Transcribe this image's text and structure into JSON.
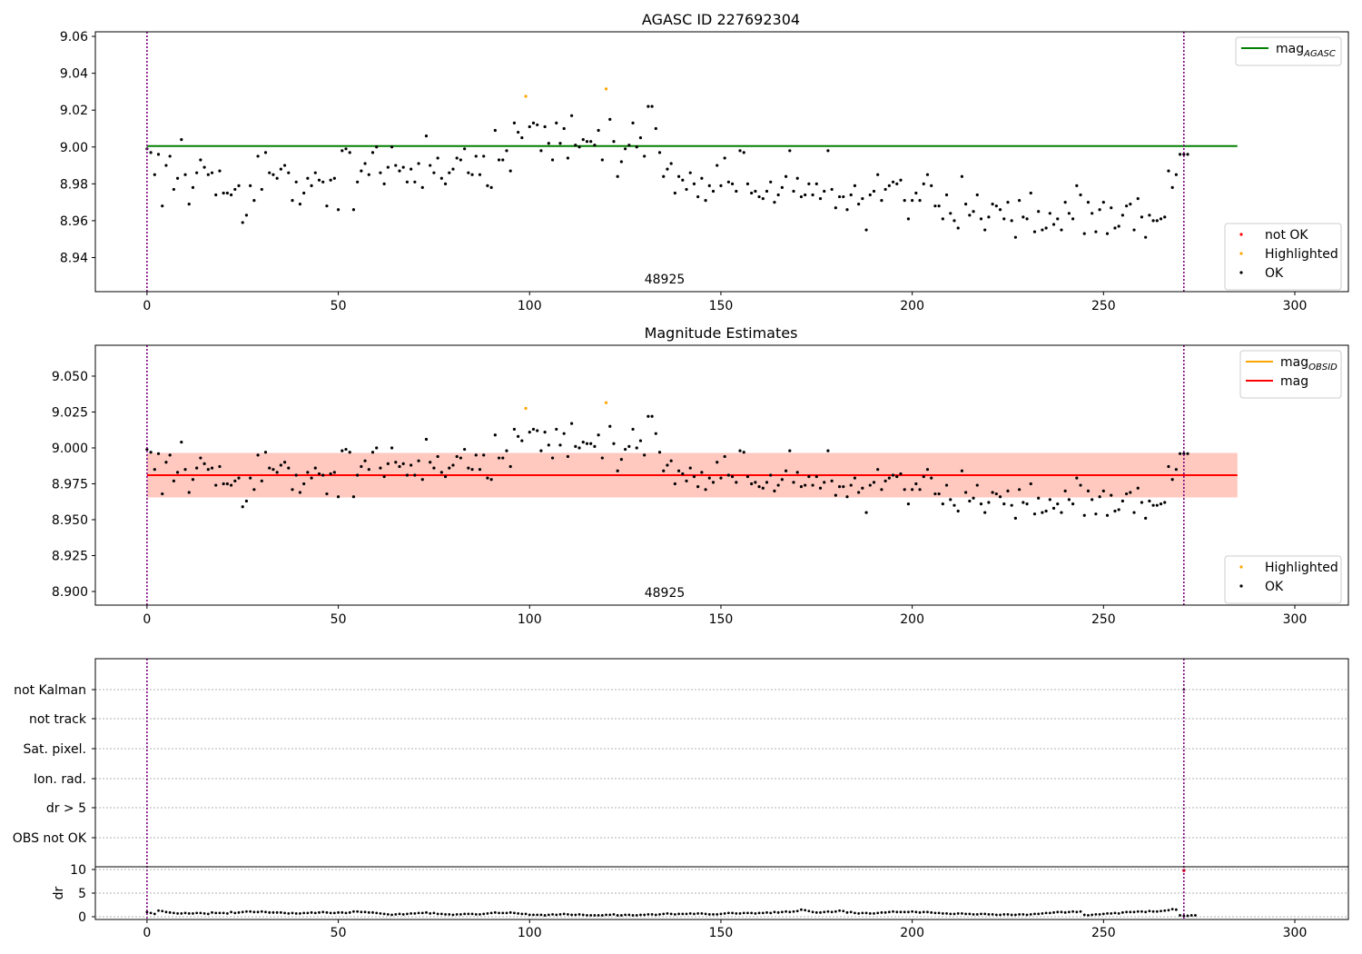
{
  "chart_data": [
    {
      "type": "scatter",
      "title": "AGASC ID 227692304",
      "xlim": [
        -13.5,
        314
      ],
      "ylim": [
        8.9215,
        9.0625
      ],
      "xticks": [
        0,
        50,
        100,
        150,
        200,
        250,
        300
      ],
      "yticks": [
        8.94,
        8.96,
        8.98,
        9.0,
        9.02,
        9.04,
        9.06
      ],
      "ytick_labels": [
        "8.94",
        "8.96",
        "8.98",
        "9.00",
        "9.02",
        "9.04",
        "9.06"
      ],
      "vlines": [
        0,
        271
      ],
      "obsid_label": {
        "text": "48925",
        "x": 135.5
      },
      "reference_line": {
        "name": "mag_AGASC",
        "y": 9.0005,
        "x": [
          0,
          285
        ],
        "color": "#008000"
      },
      "legends": {
        "top": [
          {
            "label": "mag",
            "subscript": "AGASC",
            "color": "#008000",
            "kind": "line"
          }
        ],
        "bottom": [
          {
            "label": "not OK",
            "color": "#ff0000",
            "kind": "marker"
          },
          {
            "label": "Highlighted",
            "color": "#ffa500",
            "kind": "marker"
          },
          {
            "label": "OK",
            "color": "#000000",
            "kind": "marker"
          }
        ]
      }
    },
    {
      "type": "scatter",
      "title": "Magnitude Estimates",
      "xlim": [
        -13.5,
        314
      ],
      "ylim": [
        8.8905,
        9.0715
      ],
      "xticks": [
        0,
        50,
        100,
        150,
        200,
        250,
        300
      ],
      "yticks": [
        8.9,
        8.925,
        8.95,
        8.975,
        9.0,
        9.025,
        9.05
      ],
      "ytick_labels": [
        "8.900",
        "8.925",
        "8.950",
        "8.975",
        "9.000",
        "9.025",
        "9.050"
      ],
      "vlines": [
        0,
        271
      ],
      "obsid_label": {
        "text": "48925",
        "x": 135.5
      },
      "mean_line": {
        "name": "mag",
        "y": 8.981,
        "x": [
          0,
          285
        ],
        "color": "#ff0000"
      },
      "band": {
        "y": [
          8.9655,
          8.9965
        ],
        "x": [
          0,
          285
        ],
        "colors": [
          "#ffc0cb",
          "#ffa07a"
        ]
      },
      "legends": {
        "top": [
          {
            "label": "mag",
            "subscript": "OBSID",
            "color": "#ffa500",
            "kind": "line"
          },
          {
            "label": "mag",
            "subscript": "",
            "color": "#ff0000",
            "kind": "line"
          }
        ],
        "bottom": [
          {
            "label": "Highlighted",
            "color": "#ffa500",
            "kind": "marker"
          },
          {
            "label": "OK",
            "color": "#000000",
            "kind": "marker"
          }
        ]
      }
    },
    {
      "type": "scatter",
      "title": "",
      "xlim": [
        -13.5,
        314
      ],
      "xticks": [
        0,
        50,
        100,
        150,
        200,
        250,
        300
      ],
      "vlines": [
        0,
        271
      ],
      "flag_labels": [
        "not Kalman",
        "not track",
        "Sat. pixel.",
        "Ion. rad.",
        "dr > 5",
        "OBS not OK"
      ],
      "dr_ylabel": "dr",
      "dr_ylim": [
        0,
        10
      ],
      "dr_yticks": [
        0,
        5,
        10
      ],
      "dr_ytick_labels": [
        "0",
        "5",
        "10"
      ],
      "flag_points": [
        {
          "x": 271,
          "flag": "not Kalman"
        },
        {
          "x": 271,
          "dr": 9.8,
          "color": "#ff0000"
        }
      ]
    }
  ],
  "series": {
    "ok_mag": [
      8.999,
      8.997,
      8.985,
      8.996,
      8.968,
      8.99,
      8.995,
      8.977,
      8.983,
      9.004,
      8.985,
      8.969,
      8.978,
      8.986,
      8.993,
      8.989,
      8.985,
      8.986,
      8.974,
      8.987,
      8.975,
      8.975,
      8.974,
      8.977,
      8.979,
      8.959,
      8.963,
      8.979,
      8.971,
      8.995,
      8.977,
      8.997,
      8.986,
      8.985,
      8.983,
      8.988,
      8.99,
      8.986,
      8.971,
      8.981,
      8.969,
      8.975,
      8.983,
      8.979,
      8.986,
      8.982,
      8.981,
      8.968,
      8.982,
      8.983,
      8.966,
      8.998,
      8.999,
      8.997,
      8.966,
      8.981,
      8.987,
      8.991,
      8.985,
      8.997,
      9.0,
      8.986,
      8.98,
      8.989,
      9.0,
      8.99,
      8.987,
      8.989,
      8.981,
      8.988,
      8.981,
      8.991,
      8.978,
      9.006,
      8.99,
      8.986,
      8.994,
      8.983,
      8.98,
      8.986,
      8.988,
      8.994,
      8.993,
      8.999,
      8.986,
      8.985,
      8.995,
      8.985,
      8.995,
      8.979,
      8.978,
      9.009,
      8.993,
      8.993,
      8.998,
      8.987,
      9.013,
      9.008,
      9.005,
      9.013,
      9.011,
      9.013,
      9.012,
      8.998,
      9.011,
      9.002,
      8.993,
      9.013,
      9.002,
      9.01,
      8.994,
      9.017,
      9.001,
      9.0,
      9.004,
      9.003,
      9.003,
      9.001,
      9.009,
      8.993,
      9.011,
      9.015,
      9.003,
      8.984,
      8.992,
      8.999,
      9.001,
      9.013,
      9.0,
      9.005,
      8.995,
      9.022,
      9.022,
      9.01,
      8.997,
      8.984,
      8.988,
      8.991,
      8.975,
      8.984,
      8.982,
      8.977,
      8.986,
      8.98,
      8.973,
      8.983,
      8.971,
      8.979,
      8.976,
      8.99,
      8.979,
      8.994,
      8.981,
      8.98,
      8.976,
      8.998,
      8.997,
      8.98,
      8.975,
      8.976,
      8.973,
      8.972,
      8.976,
      8.981,
      8.97,
      8.974,
      8.978,
      8.984,
      8.998,
      8.976,
      8.983,
      8.973,
      8.974,
      8.98,
      8.974,
      8.98,
      8.972,
      8.976,
      8.998,
      8.977,
      8.967,
      8.973,
      8.973,
      8.966,
      8.974,
      8.979,
      8.969,
      8.972,
      8.955,
      8.974,
      8.976,
      8.985,
      8.971,
      8.977,
      8.979,
      8.981,
      8.98,
      8.982,
      8.971,
      8.961,
      8.971,
      8.975,
      8.971,
      8.98,
      8.985,
      8.979,
      8.968,
      8.968,
      8.961,
      8.974,
      8.964,
      8.96,
      8.956,
      8.984,
      8.969,
      8.963,
      8.965,
      8.974,
      8.961,
      8.955,
      8.962,
      8.969,
      8.968,
      8.966,
      8.961,
      8.97,
      8.96,
      8.951,
      8.971,
      8.962,
      8.961,
      8.975,
      8.954,
      8.965,
      8.955,
      8.956,
      8.964,
      8.958,
      8.961,
      8.955,
      8.97,
      8.964,
      8.961,
      8.979,
      8.974,
      8.953,
      8.97,
      8.964,
      8.954,
      8.966,
      8.97,
      8.953,
      8.967,
      8.956,
      8.957,
      8.963,
      8.968,
      8.969,
      8.955,
      8.972,
      8.962,
      8.951,
      8.963,
      8.96,
      8.96,
      8.961,
      8.962,
      8.987,
      8.978,
      8.985,
      8.996,
      8.996,
      8.996
    ],
    "highlighted": [
      {
        "x": 99,
        "y": 9.0275
      },
      {
        "x": 120,
        "y": 9.0315
      }
    ],
    "dr": [
      1.0,
      0.8,
      0.6,
      1.3,
      1.2,
      1.0,
      0.9,
      0.8,
      0.7,
      0.7,
      0.8,
      0.7,
      0.7,
      0.8,
      0.8,
      0.7,
      0.6,
      0.9,
      0.8,
      0.8,
      0.8,
      0.7,
      1.0,
      0.8,
      0.9,
      1.0,
      1.1,
      1.1,
      1.0,
      1.0,
      1.1,
      1.0,
      0.9,
      0.9,
      0.9,
      0.9,
      0.8,
      0.7,
      0.8,
      0.7,
      0.7,
      0.8,
      0.8,
      0.9,
      0.8,
      0.9,
      1.0,
      0.9,
      0.8,
      0.8,
      0.9,
      0.9,
      0.8,
      0.9,
      1.1,
      1.1,
      1.0,
      1.0,
      0.9,
      0.9,
      0.8,
      0.7,
      0.6,
      0.5,
      0.4,
      0.5,
      0.6,
      0.5,
      0.6,
      0.7,
      0.7,
      0.8,
      0.8,
      0.9,
      0.7,
      0.8,
      0.6,
      0.6,
      0.5,
      0.5,
      0.4,
      0.5,
      0.5,
      0.6,
      0.6,
      0.6,
      0.5,
      0.5,
      0.6,
      0.7,
      0.8,
      0.9,
      0.8,
      0.8,
      0.8,
      0.9,
      0.8,
      0.7,
      0.6,
      0.6,
      0.4,
      0.4,
      0.4,
      0.4,
      0.3,
      0.4,
      0.5,
      0.4,
      0.5,
      0.6,
      0.5,
      0.4,
      0.4,
      0.5,
      0.4,
      0.3,
      0.3,
      0.3,
      0.3,
      0.3,
      0.4,
      0.4,
      0.5,
      0.3,
      0.3,
      0.4,
      0.4,
      0.3,
      0.3,
      0.4,
      0.4,
      0.5,
      0.5,
      0.4,
      0.5,
      0.6,
      0.7,
      0.6,
      0.5,
      0.6,
      0.6,
      0.6,
      0.7,
      0.6,
      0.7,
      0.7,
      0.6,
      0.5,
      0.5,
      0.5,
      0.6,
      0.7,
      0.8,
      0.8,
      0.7,
      0.7,
      0.8,
      0.8,
      0.8,
      0.7,
      0.8,
      0.8,
      0.9,
      0.8,
      1.0,
      0.9,
      1.0,
      1.1,
      1.0,
      1.1,
      1.2,
      1.5,
      1.4,
      1.2,
      1.0,
      0.9,
      0.9,
      1.0,
      1.1,
      1.0,
      1.1,
      1.3,
      1.2,
      0.9,
      1.0,
      0.8,
      0.7,
      0.8,
      0.8,
      0.7,
      0.7,
      0.8,
      0.9,
      0.9,
      1.0,
      1.1,
      1.0,
      1.0,
      1.0,
      1.0,
      1.1,
      1.0,
      0.9,
      1.0,
      1.0,
      0.9,
      0.8,
      0.8,
      0.7,
      0.7,
      0.6,
      0.6,
      0.7,
      0.7,
      0.6,
      0.6,
      0.5,
      0.5,
      0.6,
      0.6,
      0.5,
      0.5,
      0.4,
      0.4,
      0.5,
      0.5,
      0.4,
      0.4,
      0.5,
      0.5,
      0.4,
      0.5,
      0.6,
      0.6,
      0.7,
      0.8,
      0.8,
      0.9,
      1.0,
      1.0,
      0.9,
      1.0,
      1.1,
      1.0,
      1.1,
      0.4,
      0.3,
      0.4,
      0.5,
      0.5,
      0.6,
      0.7,
      0.7,
      0.8,
      0.7,
      0.9,
      1.0,
      1.0,
      1.0,
      1.1,
      1.1,
      1.0,
      1.2,
      1.1,
      1.1,
      1.2,
      1.3,
      1.4,
      1.6,
      1.5,
      0.3,
      0.2,
      0.2,
      0.3,
      0.3
    ]
  }
}
